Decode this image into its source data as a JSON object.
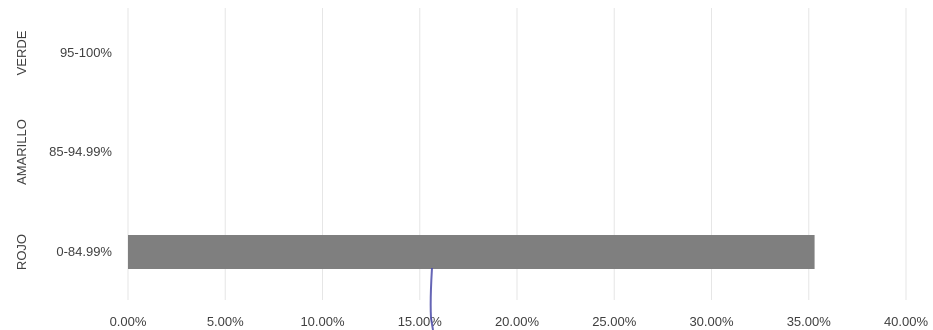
{
  "chart_data": {
    "type": "bar",
    "orientation": "horizontal",
    "categories": [
      "0-84.99%",
      "85-94.99%",
      "95-100%"
    ],
    "groups": [
      "ROJO",
      "AMARILLO",
      "VERDE"
    ],
    "values": [
      0.353,
      0,
      0
    ],
    "xlim": [
      0,
      0.4
    ],
    "x_ticks": [
      0,
      0.05,
      0.1,
      0.15,
      0.2,
      0.25,
      0.3,
      0.35,
      0.4
    ],
    "x_tick_labels": [
      "0.00%",
      "5.00%",
      "10.00%",
      "15.00%",
      "20.00%",
      "25.00%",
      "30.00%",
      "35.00%",
      "40.00%"
    ],
    "title": "",
    "xlabel": "",
    "ylabel": "",
    "grid": "vertical",
    "legend": "none",
    "colors": {
      "bar": "#7f7f7f",
      "grid": "#e6e6e6",
      "text": "#404040",
      "annotation": "#4a4aa8"
    }
  }
}
